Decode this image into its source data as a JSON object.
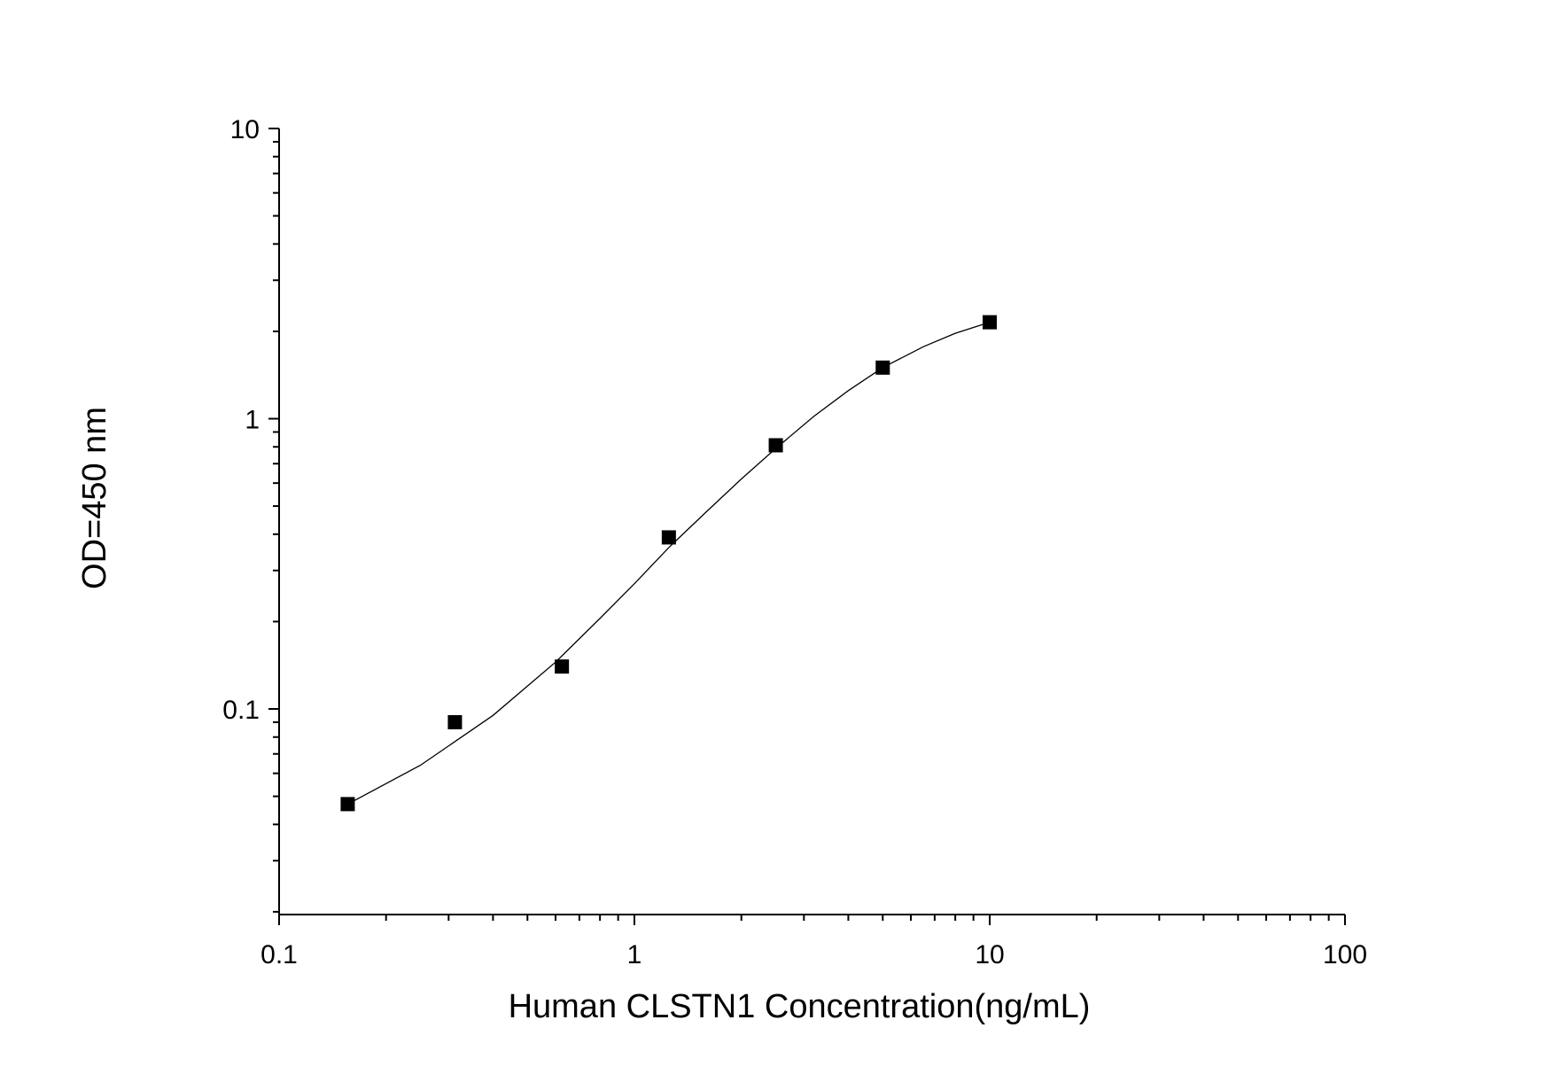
{
  "chart_data": {
    "type": "scatter",
    "xlabel": "Human CLSTN1 Concentration(ng/mL)",
    "ylabel": "OD=450 nm",
    "x_scale": "log",
    "y_scale": "log",
    "xlim": [
      0.1,
      100
    ],
    "ylim": [
      0.02,
      10
    ],
    "x_ticks": [
      {
        "value": 0.1,
        "label": "0.1"
      },
      {
        "value": 1,
        "label": "1"
      },
      {
        "value": 10,
        "label": "10"
      },
      {
        "value": 100,
        "label": "100"
      }
    ],
    "y_ticks": [
      {
        "value": 0.1,
        "label": "0.1"
      },
      {
        "value": 1,
        "label": "1"
      },
      {
        "value": 10,
        "label": "10"
      }
    ],
    "grid": false,
    "series": [
      {
        "marker": "square",
        "color": "#000000",
        "x": [
          0.156,
          0.3125,
          0.625,
          1.25,
          2.5,
          5,
          10
        ],
        "y": [
          0.047,
          0.09,
          0.14,
          0.39,
          0.81,
          1.5,
          2.15
        ]
      }
    ],
    "fit_curve": {
      "color": "#000000",
      "x": [
        0.156,
        0.25,
        0.4,
        0.6,
        0.8,
        1.0,
        1.25,
        1.6,
        2.0,
        2.5,
        3.2,
        4.0,
        5.0,
        6.5,
        8.0,
        10
      ],
      "y": [
        0.047,
        0.064,
        0.095,
        0.145,
        0.205,
        0.27,
        0.36,
        0.48,
        0.62,
        0.79,
        1.02,
        1.25,
        1.5,
        1.77,
        1.97,
        2.15
      ]
    }
  }
}
